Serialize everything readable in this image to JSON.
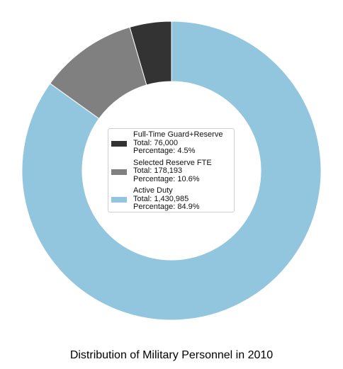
{
  "chart_data": {
    "type": "pie",
    "variant": "donut",
    "title": "Distribution of Military Personnel in 2010",
    "start_angle_deg": 90,
    "direction": "counterclockwise",
    "legend_placement": "center",
    "slices": [
      {
        "label": "Full-Time Guard+Reserve",
        "value": 76000,
        "total_text": "Total: 76,000",
        "percentage_text": "Percentage: 4.5%",
        "color": "#333333"
      },
      {
        "label": "Selected Reserve FTE",
        "value": 178193,
        "total_text": "Total: 178,193",
        "percentage_text": "Percentage: 10.6%",
        "color": "#808080"
      },
      {
        "label": "Active Duty",
        "value": 1430985,
        "total_text": "Total: 1,430,985",
        "percentage_text": "Percentage: 84.9%",
        "color": "#92c6de"
      }
    ]
  }
}
